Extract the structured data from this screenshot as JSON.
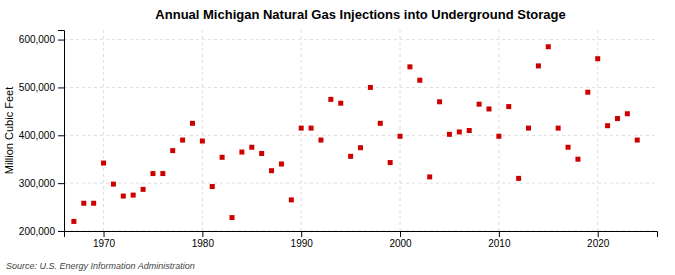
{
  "chart_data": {
    "type": "scatter",
    "title": "Annual Michigan Natural Gas Injections into Underground Storage",
    "ylabel": "Million Cubic Feet",
    "annotations": [
      "Source: U.S. Energy Information Administration"
    ],
    "color": "#cc0000",
    "marker": "square",
    "grid": true,
    "xlim": [
      1966,
      2026
    ],
    "ylim": [
      200000,
      620000
    ],
    "xticks": [
      1970,
      1980,
      1990,
      2000,
      2010,
      2020
    ],
    "yticks": [
      {
        "value": 200000,
        "label": "200,000"
      },
      {
        "value": 300000,
        "label": "300,000"
      },
      {
        "value": 400000,
        "label": "400,000"
      },
      {
        "value": 500000,
        "label": "500,000"
      },
      {
        "value": 600000,
        "label": "600,000"
      }
    ],
    "x": [
      1967,
      1968,
      1969,
      1970,
      1971,
      1972,
      1973,
      1974,
      1975,
      1976,
      1977,
      1978,
      1979,
      1980,
      1981,
      1982,
      1983,
      1984,
      1985,
      1986,
      1987,
      1988,
      1989,
      1990,
      1991,
      1992,
      1993,
      1994,
      1995,
      1996,
      1997,
      1998,
      1999,
      2000,
      2001,
      2002,
      2003,
      2004,
      2005,
      2006,
      2007,
      2008,
      2009,
      2010,
      2011,
      2012,
      2013,
      2014,
      2015,
      2016,
      2017,
      2018,
      2019,
      2020,
      2021,
      2022,
      2023,
      2024
    ],
    "values": [
      220000,
      258000,
      258000,
      342000,
      298000,
      273000,
      275000,
      287000,
      320000,
      320000,
      368000,
      390000,
      425000,
      388000,
      293000,
      354000,
      228000,
      365000,
      375000,
      362000,
      326000,
      340000,
      265000,
      415000,
      415000,
      390000,
      475000,
      467000,
      356000,
      374000,
      500000,
      425000,
      343000,
      398000,
      543000,
      515000,
      313000,
      470000,
      402000,
      407000,
      410000,
      465000,
      455000,
      398000,
      460000,
      310000,
      415000,
      545000,
      585000,
      415000,
      375000,
      350000,
      490000,
      560000,
      420000,
      435000,
      445000,
      390000
    ]
  }
}
